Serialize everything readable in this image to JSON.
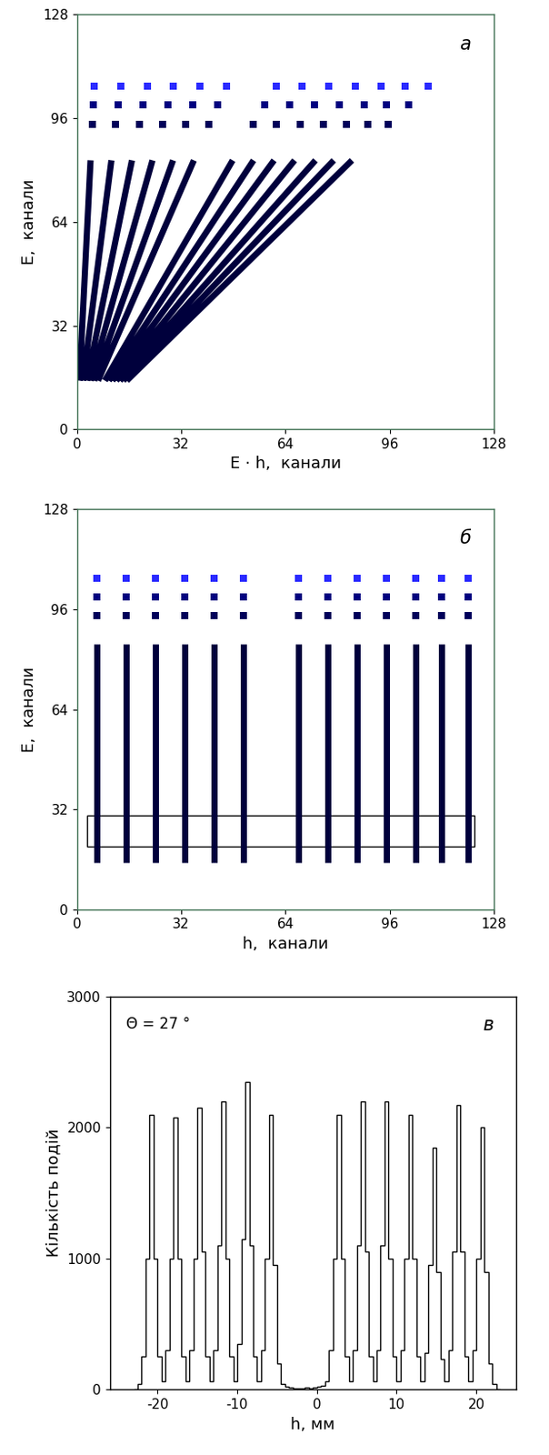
{
  "chart_data": [
    {
      "type": "line",
      "panel_label": "а",
      "x_label": "E · h,  канали",
      "y_label": "E,  канали",
      "xlim": [
        0,
        128
      ],
      "ylim": [
        0,
        128
      ],
      "xticks": [
        0,
        32,
        64,
        96,
        128
      ],
      "yticks": [
        0,
        32,
        64,
        96,
        128
      ],
      "series": [
        {
          "type": "line",
          "color": "#00003c",
          "x": [
            0.8,
            4.2,
            null,
            1.9,
            10.6,
            null,
            3.1,
            16.9,
            null,
            4.2,
            23.2,
            null,
            5.3,
            29.5,
            null,
            6.5,
            35.9,
            null,
            8.6,
            47.8,
            null,
            9.8,
            54.2,
            null,
            10.9,
            60.5,
            null,
            12.1,
            66.8,
            null,
            13.2,
            73.2,
            null,
            14.2,
            78.8,
            null,
            15.3,
            84.4
          ],
          "values": [
            15,
            83,
            null,
            15,
            83,
            null,
            15,
            83,
            null,
            15,
            83,
            null,
            15,
            83,
            null,
            15,
            83,
            null,
            15,
            83,
            null,
            15,
            83,
            null,
            15,
            83,
            null,
            15,
            83,
            null,
            15,
            83,
            null,
            15,
            83,
            null,
            15,
            83
          ]
        },
        {
          "type": "scatter",
          "color": "#00005a",
          "x": [
            4.8,
            11.9,
            19.1,
            26.3,
            33.5,
            40.6,
            54.2,
            61.3,
            68.5,
            75.7,
            82.8,
            89.2,
            95.6
          ],
          "values": [
            94,
            94,
            94,
            94,
            94,
            94,
            94,
            94,
            94,
            94,
            94,
            94,
            94
          ]
        },
        {
          "type": "scatter",
          "color": "#000080",
          "x": [
            5.1,
            12.7,
            20.3,
            28.0,
            35.6,
            43.2,
            57.6,
            65.3,
            72.9,
            80.5,
            88.1,
            94.9,
            101.7
          ],
          "values": [
            100,
            100,
            100,
            100,
            100,
            100,
            100,
            100,
            100,
            100,
            100,
            100,
            100
          ]
        },
        {
          "type": "scatter",
          "color": "#2a2aff",
          "x": [
            5.4,
            13.5,
            21.6,
            29.6,
            37.7,
            45.8,
            61.1,
            69.2,
            77.3,
            85.3,
            93.4,
            100.6,
            107.8
          ],
          "values": [
            106,
            106,
            106,
            106,
            106,
            106,
            106,
            106,
            106,
            106,
            106,
            106,
            106
          ]
        }
      ]
    },
    {
      "type": "line",
      "panel_label": "б",
      "x_label": "h,  канали",
      "y_label": "E,  канали",
      "xlim": [
        0,
        128
      ],
      "ylim": [
        0,
        128
      ],
      "xticks": [
        0,
        32,
        64,
        96,
        128
      ],
      "yticks": [
        0,
        32,
        64,
        96,
        128
      ],
      "box": {
        "x": [
          3,
          122
        ],
        "y": [
          20,
          30
        ]
      },
      "series": [
        {
          "type": "line",
          "color": "#00003c",
          "x": [
            6,
            6,
            null,
            15,
            15,
            null,
            24,
            24,
            null,
            33,
            33,
            null,
            42,
            42,
            null,
            51,
            51,
            null,
            68,
            68,
            null,
            77,
            77,
            null,
            86,
            86,
            null,
            95,
            95,
            null,
            104,
            104,
            null,
            112,
            112,
            null,
            120,
            120
          ],
          "values": [
            15,
            85,
            null,
            15,
            85,
            null,
            15,
            85,
            null,
            15,
            85,
            null,
            15,
            85,
            null,
            15,
            85,
            null,
            15,
            85,
            null,
            15,
            85,
            null,
            15,
            85,
            null,
            15,
            85,
            null,
            15,
            85,
            null,
            15,
            85,
            null,
            15,
            85
          ]
        },
        {
          "type": "scatter",
          "color": "#00005a",
          "x": [
            6,
            15,
            24,
            33,
            42,
            51,
            68,
            77,
            86,
            95,
            104,
            112,
            120
          ],
          "values": [
            94,
            94,
            94,
            94,
            94,
            94,
            94,
            94,
            94,
            94,
            94,
            94,
            94
          ]
        },
        {
          "type": "scatter",
          "color": "#000080",
          "x": [
            6,
            15,
            24,
            33,
            42,
            51,
            68,
            77,
            86,
            95,
            104,
            112,
            120
          ],
          "values": [
            100,
            100,
            100,
            100,
            100,
            100,
            100,
            100,
            100,
            100,
            100,
            100,
            100
          ]
        },
        {
          "type": "scatter",
          "color": "#2a2aff",
          "x": [
            6,
            15,
            24,
            33,
            42,
            51,
            68,
            77,
            86,
            95,
            104,
            112,
            120
          ],
          "values": [
            106,
            106,
            106,
            106,
            106,
            106,
            106,
            106,
            106,
            106,
            106,
            106,
            106
          ]
        }
      ]
    },
    {
      "type": "histogram",
      "panel_label": "в",
      "annotation": "Θ = 27 °",
      "x_label": "h, мм",
      "y_label": "Кількість подій",
      "xlim": [
        -26,
        25
      ],
      "ylim": [
        0,
        3000
      ],
      "xticks": [
        -20,
        -10,
        0,
        10,
        20
      ],
      "yticks": [
        0,
        1000,
        2000,
        3000
      ],
      "color": "#000000",
      "bins": [
        -23,
        -22.5,
        -22,
        -21.5,
        -21,
        -20.5,
        -20,
        -19.5,
        -19,
        -18.5,
        -18,
        -17.5,
        -17,
        -16.5,
        -16,
        -15.5,
        -15,
        -14.5,
        -14,
        -13.5,
        -13,
        -12.5,
        -12,
        -11.5,
        -11,
        -10.5,
        -10,
        -9.5,
        -9,
        -8.5,
        -8,
        -7.5,
        -7,
        -6.5,
        -6,
        -5.5,
        -5,
        -4.5,
        -4,
        -3.5,
        -3,
        -2.5,
        -2,
        -1.5,
        -1,
        -0.5,
        0,
        0.5,
        1,
        1.5,
        2,
        2.5,
        3,
        3.5,
        4,
        4.5,
        5,
        5.5,
        6,
        6.5,
        7,
        7.5,
        8,
        8.5,
        9,
        9.5,
        10,
        10.5,
        11,
        11.5,
        12,
        12.5,
        13,
        13.5,
        14,
        14.5,
        15,
        15.5,
        16,
        16.5,
        17,
        17.5,
        18,
        18.5,
        19,
        19.5,
        20,
        20.5,
        21,
        21.5,
        22,
        22.5,
        23
      ],
      "counts": [
        0,
        40,
        250,
        1000,
        2100,
        1000,
        250,
        60,
        300,
        1000,
        2080,
        1000,
        250,
        60,
        300,
        1000,
        2150,
        1050,
        250,
        60,
        300,
        1100,
        2200,
        1000,
        250,
        60,
        350,
        1150,
        2350,
        1100,
        250,
        60,
        300,
        1000,
        2100,
        950,
        200,
        40,
        20,
        15,
        10,
        10,
        10,
        15,
        10,
        15,
        20,
        30,
        60,
        300,
        1000,
        2100,
        1000,
        250,
        60,
        300,
        1100,
        2200,
        1050,
        250,
        60,
        300,
        1100,
        2200,
        1000,
        250,
        60,
        300,
        1000,
        2100,
        1000,
        250,
        60,
        280,
        950,
        1850,
        900,
        230,
        60,
        300,
        1050,
        2170,
        1050,
        250,
        60,
        300,
        1000,
        2000,
        900,
        200,
        40,
        0
      ]
    }
  ]
}
